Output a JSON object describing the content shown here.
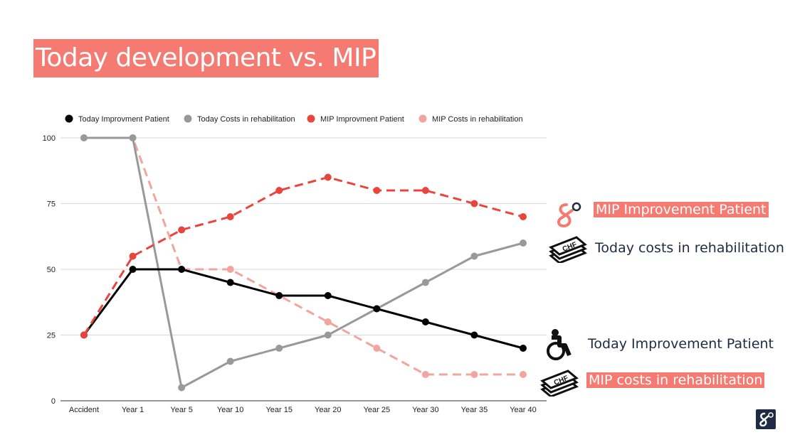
{
  "title": "Today development vs. MIP",
  "colors": {
    "banner": "#f47a72",
    "today_patient": "#000000",
    "today_costs": "#999999",
    "mip_patient": "#e8453c",
    "mip_costs": "#f2a59e",
    "label_text": "#1f2a44"
  },
  "side_labels": {
    "mip_patient": "MIP Improvement Patient",
    "today_costs": "Today costs in rehabilitation",
    "today_patient": "Today Improvement Patient",
    "mip_costs": "MIP costs in rehabilitation"
  },
  "chart_data": {
    "type": "line",
    "title": "",
    "xlabel": "",
    "ylabel": "",
    "ylim": [
      0,
      100
    ],
    "yticks": [
      0,
      25,
      50,
      75,
      100
    ],
    "grid": true,
    "legend": "top-left",
    "categories": [
      "Accident",
      "Year 1",
      "Year 5",
      "Year 10",
      "Year 15",
      "Year 20",
      "Year 25",
      "Year 30",
      "Year 35",
      "Year 40"
    ],
    "series": [
      {
        "name": "Today Improvment Patient",
        "style": "solid",
        "color": "#000000",
        "values": [
          25,
          50,
          50,
          45,
          40,
          40,
          35,
          30,
          25,
          20
        ]
      },
      {
        "name": "Today Costs in rehabilitation",
        "style": "solid",
        "color": "#999999",
        "values": [
          100,
          100,
          5,
          15,
          20,
          25,
          35,
          45,
          55,
          60
        ]
      },
      {
        "name": "MIP  Improvment Patient",
        "style": "dashed",
        "color": "#e8453c",
        "values": [
          25,
          55,
          65,
          70,
          80,
          85,
          80,
          80,
          75,
          70
        ]
      },
      {
        "name": "MIP Costs in rehabilitation",
        "style": "dashed",
        "color": "#f2a59e",
        "values": [
          100,
          100,
          50,
          50,
          40,
          30,
          20,
          10,
          10,
          10
        ]
      }
    ]
  }
}
